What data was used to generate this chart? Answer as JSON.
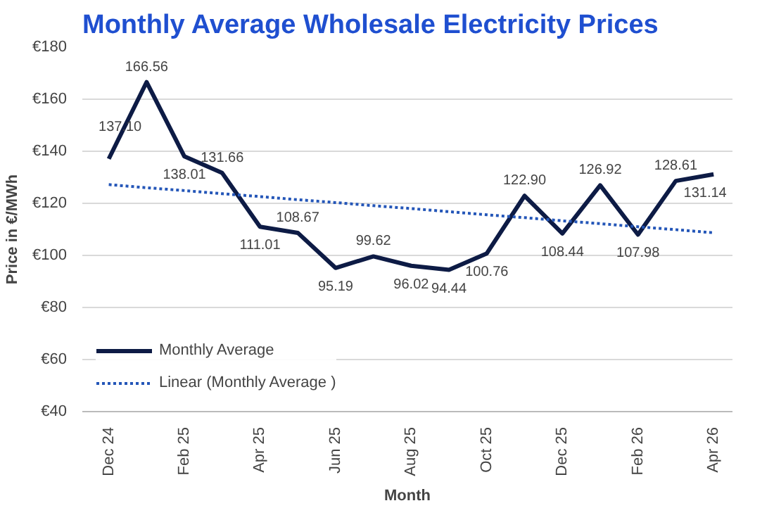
{
  "chart_data": {
    "type": "line",
    "title": "Monthly Average Wholesale Electricity Prices",
    "xlabel": "Month",
    "ylabel": "Price in €/MWh",
    "categories": [
      "Dec 24",
      null,
      "Feb 25",
      null,
      "Apr 25",
      null,
      "Jun 25",
      null,
      "Aug 25",
      null,
      "Oct 25",
      null,
      "Dec 25",
      null,
      "Feb 26",
      null,
      "Apr 26"
    ],
    "series": [
      {
        "name": "Monthly Average",
        "color": "#0d1b45",
        "line_style": "solid",
        "values": [
          137.1,
          166.56,
          138.01,
          131.66,
          111.01,
          108.67,
          95.19,
          99.62,
          96.02,
          94.44,
          100.76,
          122.9,
          108.44,
          126.92,
          107.98,
          128.61,
          131.14
        ],
        "value_labels": [
          "137.10",
          "166.56",
          "138.01",
          "131.66",
          "111.01",
          "108.67",
          "95.19",
          "99.62",
          "96.02",
          "94.44",
          "100.76",
          "122.90",
          "108.44",
          "126.92",
          "107.98",
          "128.61",
          "131.14"
        ]
      },
      {
        "name": "Linear (Monthly Average )",
        "color": "#2456b8",
        "line_style": "dotted",
        "values": [
          127.2,
          126.0,
          124.9,
          123.7,
          122.6,
          121.4,
          120.3,
          119.1,
          118.0,
          116.8,
          115.6,
          114.5,
          113.3,
          112.2,
          111.0,
          109.9,
          108.7
        ]
      }
    ],
    "ylim": [
      40,
      180
    ],
    "yticks": [
      {
        "value": 40,
        "label": "€40"
      },
      {
        "value": 60,
        "label": "€60"
      },
      {
        "value": 80,
        "label": "€80"
      },
      {
        "value": 100,
        "label": "€100"
      },
      {
        "value": 120,
        "label": "€120"
      },
      {
        "value": 140,
        "label": "€140"
      },
      {
        "value": 160,
        "label": "€160"
      },
      {
        "value": 180,
        "label": "€180"
      }
    ],
    "grid": "y",
    "legend": "bottom left"
  }
}
